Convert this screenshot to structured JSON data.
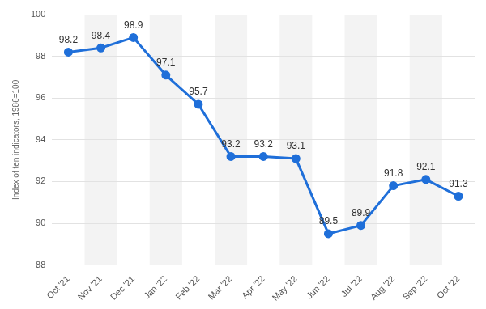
{
  "chart_data": {
    "type": "line",
    "y_label": "Index of ten indicators, 1986=100",
    "categories": [
      "Oct '21",
      "Nov '21",
      "Dec '21",
      "Jan '22",
      "Feb '22",
      "Mar '22",
      "Apr '22",
      "May '22",
      "Jun '22",
      "Jul '22",
      "Aug '22",
      "Sep '22",
      "Oct '22"
    ],
    "values": [
      98.2,
      98.4,
      98.9,
      97.1,
      95.7,
      93.2,
      93.2,
      93.1,
      89.5,
      89.9,
      91.8,
      92.1,
      91.3
    ],
    "color": "#1f6fd9",
    "marker": "circle",
    "ylim": [
      88,
      100
    ],
    "yticks": [
      88,
      90,
      92,
      94,
      96,
      98,
      100
    ],
    "grid": true,
    "data_labels": true
  }
}
